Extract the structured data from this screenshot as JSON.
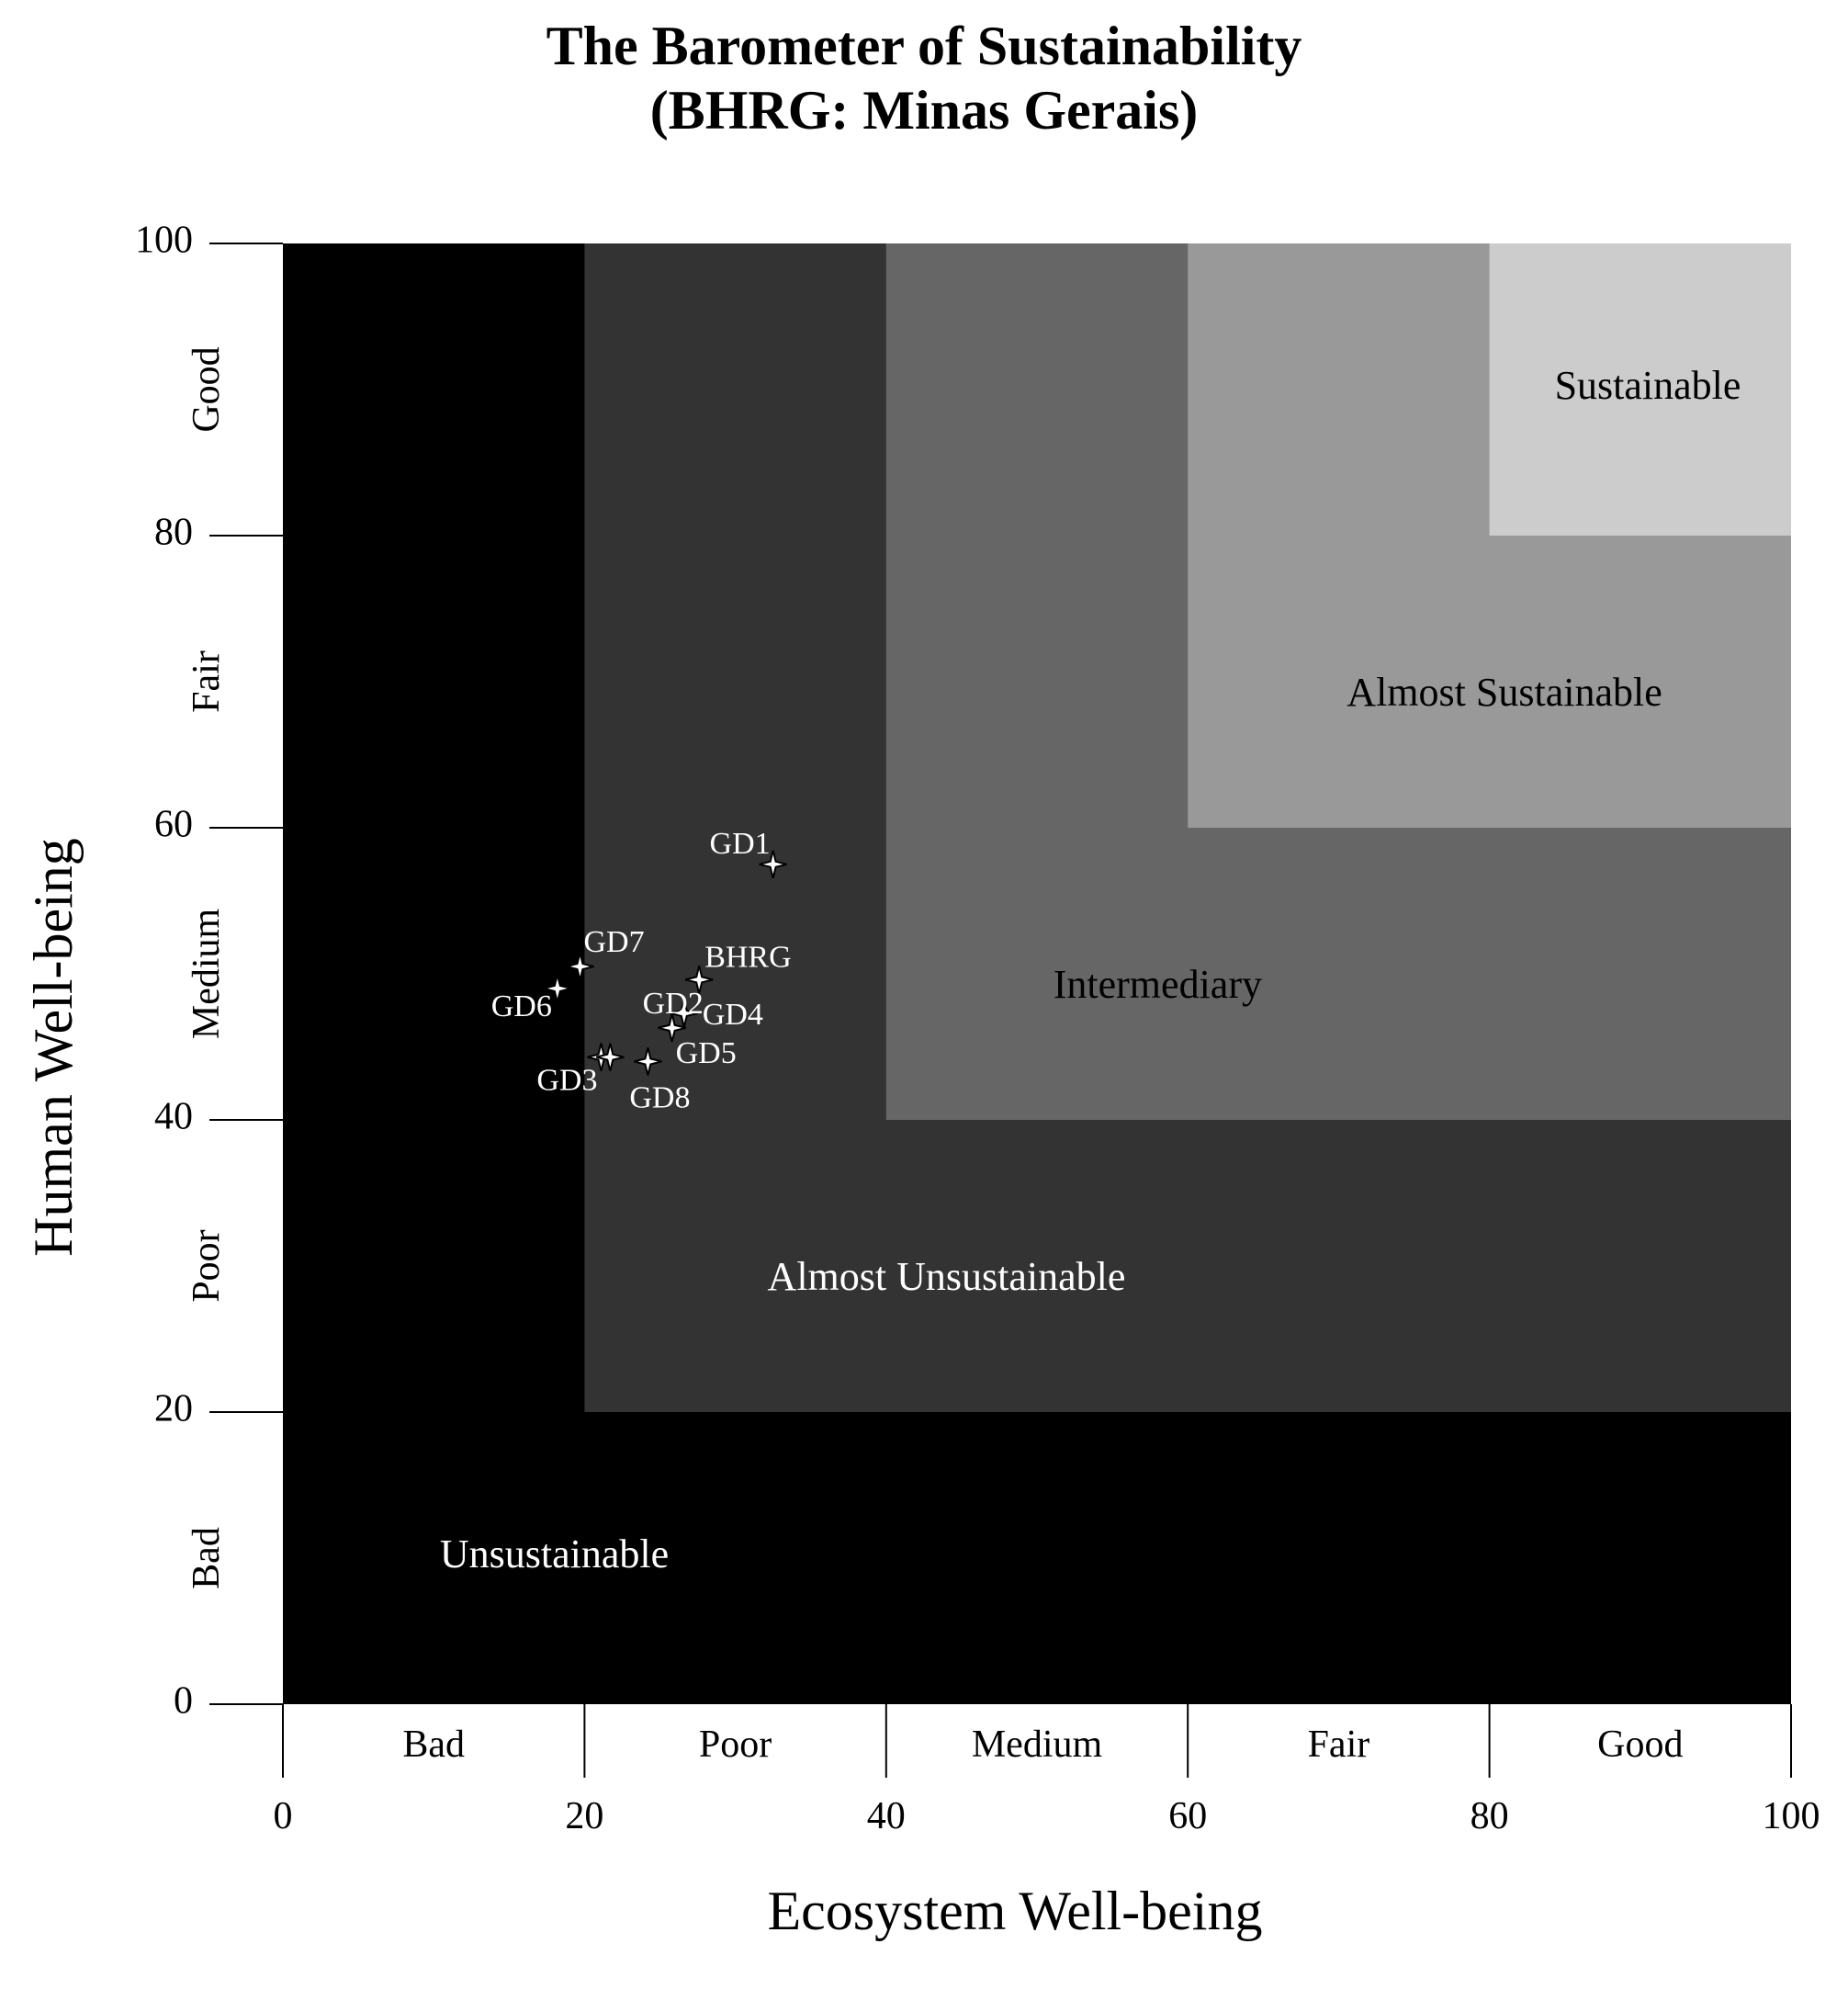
{
  "chart_data": {
    "type": "scatter",
    "title": "The Barometer of Sustainability",
    "subtitle": "(BHRG: Minas Gerais)",
    "xlabel": "Ecosystem Well-being",
    "ylabel": "Human Well-being",
    "xlim": [
      0,
      100
    ],
    "ylim": [
      0,
      100
    ],
    "grid": false,
    "x_ticks": [
      "0",
      "20",
      "40",
      "60",
      "80",
      "100"
    ],
    "y_ticks": [
      "0",
      "20",
      "40",
      "60",
      "80",
      "100"
    ],
    "x_bands": [
      "Bad",
      "Poor",
      "Medium",
      "Fair",
      "Good"
    ],
    "y_bands": [
      "Bad",
      "Poor",
      "Medium",
      "Fair",
      "Good"
    ],
    "zones": [
      {
        "label": "Unsustainable",
        "lo": 0,
        "hi": 20,
        "color": "#000000",
        "text_color": "#ffffff",
        "label_x": 18,
        "label_y": 10
      },
      {
        "label": "Almost Unsustainable",
        "lo": 20,
        "hi": 40,
        "color": "#333333",
        "text_color": "#ffffff",
        "label_x": 44,
        "label_y": 29
      },
      {
        "label": "Intermediary",
        "lo": 40,
        "hi": 60,
        "color": "#666666",
        "text_color": "#000000",
        "label_x": 58,
        "label_y": 49
      },
      {
        "label": "Almost Sustainable",
        "lo": 60,
        "hi": 80,
        "color": "#999999",
        "text_color": "#000000",
        "label_x": 81,
        "label_y": 69
      },
      {
        "label": "Sustainable",
        "lo": 80,
        "hi": 100,
        "color": "#cccccc",
        "text_color": "#000000",
        "label_x": 90.5,
        "label_y": 90
      }
    ],
    "series": [
      {
        "points": [
          {
            "label": "GD1",
            "x": 32.5,
            "y": 57.5
          },
          {
            "label": "GD7",
            "x": 19.7,
            "y": 50.5
          },
          {
            "label": "BHRG",
            "x": 27.6,
            "y": 49.6
          },
          {
            "label": "GD6",
            "x": 18.2,
            "y": 49.0
          },
          {
            "label": "GD4",
            "x": 26.6,
            "y": 47.3
          },
          {
            "label": "GD2",
            "x": 25.8,
            "y": 46.3
          },
          {
            "label": "GD5",
            "x": 25.8,
            "y": 46.3
          },
          {
            "label": "GD3",
            "x": 21.1,
            "y": 44.3
          },
          {
            "label": "GD8",
            "x": 24.2,
            "y": 44.0
          },
          {
            "label": "",
            "x": 21.7,
            "y": 44.3
          }
        ]
      }
    ]
  }
}
